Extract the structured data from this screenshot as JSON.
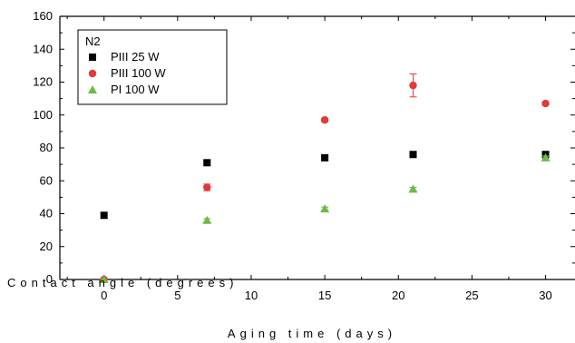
{
  "chart_data": {
    "type": "scatter",
    "xlabel": "Aging time (days)",
    "ylabel": "Contact angle (degrees)",
    "xlim": [
      -3,
      32
    ],
    "ylim": [
      0,
      160
    ],
    "x_ticks": [
      0,
      5,
      10,
      15,
      20,
      25,
      30
    ],
    "y_ticks": [
      0,
      20,
      40,
      60,
      80,
      100,
      120,
      140,
      160
    ],
    "grid": false,
    "legend_title": "N2",
    "legend_position": "top-left",
    "series": [
      {
        "name": "PIII  25 W",
        "marker": "square",
        "color": "#000000",
        "x": [
          0,
          7,
          15,
          21,
          30
        ],
        "y": [
          39,
          71,
          74,
          76,
          76
        ],
        "err": [
          0,
          1,
          1.5,
          1.5,
          1.5
        ]
      },
      {
        "name": "PIII 100 W",
        "marker": "circle",
        "color": "#e53935",
        "x": [
          0,
          7,
          15,
          21,
          30
        ],
        "y": [
          0,
          56,
          97,
          118,
          107
        ],
        "err": [
          0,
          2,
          1,
          7,
          1
        ]
      },
      {
        "name": "PI  100 W",
        "marker": "triangle",
        "color": "#6dbb45",
        "x": [
          0,
          7,
          15,
          21,
          30
        ],
        "y": [
          0,
          36,
          43,
          55,
          74
        ],
        "err": [
          0,
          1,
          1,
          1,
          1
        ]
      }
    ]
  }
}
